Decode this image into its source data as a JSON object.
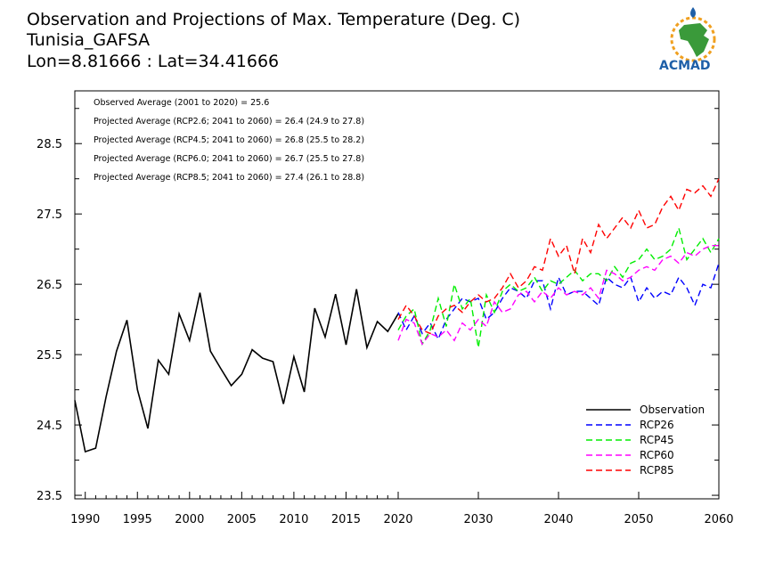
{
  "header": {
    "title_lines": [
      "Observation and Projections of Max. Temperature (Deg. C)",
      "Tunisia_GAFSA",
      "Lon=8.81666 : Lat=34.41666"
    ]
  },
  "logo": {
    "text": "ACMAD",
    "icon": "africa-map-icon"
  },
  "annotations": [
    "Observed Average (2001 to 2020) = 25.6",
    "Projected Average (RCP2.6; 2041 to 2060) = 26.4 (24.9 to 27.8)",
    "Projected Average (RCP4.5; 2041 to 2060) = 26.8 (25.5 to 28.2)",
    "Projected Average (RCP6.0; 2041 to 2060) = 26.7 (25.5 to 27.8)",
    "Projected Average (RCP8.5; 2041 to 2060) = 27.4 (26.1 to 28.8)"
  ],
  "chart_data": {
    "type": "line",
    "title": "Observation and Projections of Max. Temperature (Deg. C)",
    "xlim": [
      1989,
      2060
    ],
    "ylim": [
      23.45,
      29.25
    ],
    "x_ticks": [
      1990,
      1995,
      2000,
      2005,
      2010,
      2015,
      2020,
      2030,
      2040,
      2050,
      2060
    ],
    "y_ticks": [
      23.5,
      24.5,
      25.5,
      26.5,
      27.5,
      28.5
    ],
    "grid": false,
    "legend_position": "bottom-right",
    "series": [
      {
        "name": "Observation",
        "color": "#000000",
        "dash": false,
        "x": [
          1989,
          1990,
          1991,
          1992,
          1993,
          1994,
          1995,
          1996,
          1997,
          1998,
          1999,
          2000,
          2001,
          2002,
          2003,
          2004,
          2005,
          2006,
          2007,
          2008,
          2009,
          2010,
          2011,
          2012,
          2013,
          2014,
          2015,
          2016,
          2017,
          2018,
          2019,
          2020
        ],
        "y": [
          24.85,
          24.12,
          24.17,
          24.9,
          25.55,
          25.99,
          25.0,
          24.45,
          25.42,
          25.22,
          26.08,
          25.7,
          26.38,
          25.55,
          25.3,
          25.06,
          25.22,
          25.57,
          25.45,
          25.4,
          24.8,
          25.47,
          24.97,
          26.16,
          25.75,
          26.36,
          25.64,
          26.43,
          25.6,
          25.97,
          25.83,
          26.08
        ]
      },
      {
        "name": "RCP26",
        "color": "#0000ff",
        "dash": true,
        "x": [
          2020,
          2021,
          2022,
          2023,
          2024,
          2025,
          2026,
          2027,
          2028,
          2029,
          2030,
          2031,
          2032,
          2033,
          2034,
          2035,
          2036,
          2037,
          2038,
          2039,
          2040,
          2041,
          2042,
          2043,
          2044,
          2045,
          2046,
          2047,
          2048,
          2049,
          2050,
          2051,
          2052,
          2053,
          2054,
          2055,
          2056,
          2057,
          2058,
          2059,
          2060
        ],
        "y": [
          26.1,
          25.85,
          26.05,
          25.8,
          25.95,
          25.72,
          26.0,
          26.15,
          26.3,
          26.25,
          26.3,
          26.0,
          26.1,
          26.3,
          26.45,
          26.4,
          26.3,
          26.55,
          26.55,
          26.15,
          26.6,
          26.35,
          26.4,
          26.4,
          26.3,
          26.2,
          26.6,
          26.5,
          26.45,
          26.6,
          26.25,
          26.45,
          26.3,
          26.4,
          26.35,
          26.6,
          26.45,
          26.2,
          26.5,
          26.45,
          26.8
        ]
      },
      {
        "name": "RCP45",
        "color": "#00ee00",
        "dash": true,
        "x": [
          2020,
          2021,
          2022,
          2023,
          2024,
          2025,
          2026,
          2027,
          2028,
          2029,
          2030,
          2031,
          2032,
          2033,
          2034,
          2035,
          2036,
          2037,
          2038,
          2039,
          2040,
          2041,
          2042,
          2043,
          2044,
          2045,
          2046,
          2047,
          2048,
          2049,
          2050,
          2051,
          2052,
          2053,
          2054,
          2055,
          2056,
          2057,
          2058,
          2059,
          2060
        ],
        "y": [
          25.85,
          26.05,
          26.15,
          25.65,
          25.85,
          26.3,
          25.9,
          26.5,
          26.15,
          26.3,
          25.6,
          26.35,
          26.1,
          26.4,
          26.5,
          26.4,
          26.45,
          26.6,
          26.4,
          26.55,
          26.5,
          26.6,
          26.7,
          26.55,
          26.65,
          26.65,
          26.55,
          26.75,
          26.6,
          26.8,
          26.85,
          27.0,
          26.85,
          26.9,
          27.0,
          27.3,
          26.85,
          27.0,
          27.15,
          26.95,
          27.15
        ]
      },
      {
        "name": "RCP60",
        "color": "#ff00ff",
        "dash": true,
        "x": [
          2020,
          2021,
          2022,
          2023,
          2024,
          2025,
          2026,
          2027,
          2028,
          2029,
          2030,
          2031,
          2032,
          2033,
          2034,
          2035,
          2036,
          2037,
          2038,
          2039,
          2040,
          2041,
          2042,
          2043,
          2044,
          2045,
          2046,
          2047,
          2048,
          2049,
          2050,
          2051,
          2052,
          2053,
          2054,
          2055,
          2056,
          2057,
          2058,
          2059,
          2060
        ],
        "y": [
          25.7,
          26.0,
          25.95,
          25.65,
          25.8,
          25.75,
          25.85,
          25.7,
          25.95,
          25.85,
          26.0,
          25.9,
          26.25,
          26.1,
          26.15,
          26.35,
          26.4,
          26.25,
          26.4,
          26.3,
          26.45,
          26.35,
          26.4,
          26.35,
          26.45,
          26.3,
          26.7,
          26.65,
          26.55,
          26.6,
          26.7,
          26.75,
          26.7,
          26.85,
          26.9,
          26.8,
          26.95,
          26.9,
          27.0,
          27.05,
          27.05
        ]
      },
      {
        "name": "RCP85",
        "color": "#ff0000",
        "dash": true,
        "x": [
          2020,
          2021,
          2022,
          2023,
          2024,
          2025,
          2026,
          2027,
          2028,
          2029,
          2030,
          2031,
          2032,
          2033,
          2034,
          2035,
          2036,
          2037,
          2038,
          2039,
          2040,
          2041,
          2042,
          2043,
          2044,
          2045,
          2046,
          2047,
          2048,
          2049,
          2050,
          2051,
          2052,
          2053,
          2054,
          2055,
          2056,
          2057,
          2058,
          2059,
          2060
        ],
        "y": [
          26.0,
          26.2,
          26.05,
          25.85,
          25.8,
          26.05,
          26.15,
          26.2,
          26.1,
          26.25,
          26.35,
          26.25,
          26.3,
          26.45,
          26.65,
          26.45,
          26.55,
          26.75,
          26.7,
          27.15,
          26.9,
          27.05,
          26.65,
          27.15,
          26.95,
          27.35,
          27.15,
          27.3,
          27.45,
          27.3,
          27.55,
          27.3,
          27.35,
          27.6,
          27.75,
          27.55,
          27.85,
          27.8,
          27.9,
          27.75,
          28.0
        ]
      }
    ]
  }
}
